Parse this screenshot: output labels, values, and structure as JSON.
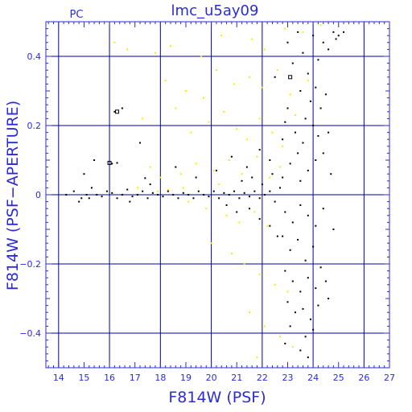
{
  "chart_data": {
    "type": "scatter",
    "title": "lmc_u5ay09",
    "subtitle": "PC",
    "xlabel": "F814W (PSF)",
    "ylabel": "F814W (PSF−APERTURE)",
    "xlim": [
      13.5,
      27
    ],
    "ylim": [
      -0.5,
      0.5
    ],
    "xticks": [
      14,
      15,
      16,
      17,
      18,
      19,
      20,
      21,
      22,
      23,
      24,
      25,
      26,
      27
    ],
    "yticks": [
      -0.4,
      -0.2,
      0,
      0.2,
      0.4
    ],
    "ytick_labels": [
      "−0.4",
      "−0.2",
      "0",
      "0.2",
      "0.4"
    ],
    "grid": true,
    "colors": {
      "axis": "#2b2bd9",
      "grid": "#0000a0",
      "series_yellow": "#f0f000",
      "series_black": "#000000"
    },
    "series": [
      {
        "color": "yellow",
        "points": [
          [
            16.2,
            0.44
          ],
          [
            16.7,
            0.42
          ],
          [
            17.8,
            0.41
          ],
          [
            18.4,
            0.43
          ],
          [
            19.6,
            0.4
          ],
          [
            20.4,
            0.46
          ],
          [
            21.6,
            0.45
          ],
          [
            22.1,
            0.42
          ],
          [
            22.9,
            0.48
          ],
          [
            23.6,
            0.47
          ],
          [
            24.3,
            0.49
          ],
          [
            18.2,
            0.33
          ],
          [
            19.0,
            0.3
          ],
          [
            19.7,
            0.28
          ],
          [
            20.2,
            0.36
          ],
          [
            20.9,
            0.32
          ],
          [
            21.5,
            0.34
          ],
          [
            22.0,
            0.31
          ],
          [
            22.6,
            0.36
          ],
          [
            23.1,
            0.29
          ],
          [
            23.8,
            0.33
          ],
          [
            17.3,
            0.22
          ],
          [
            18.6,
            0.25
          ],
          [
            19.2,
            0.18
          ],
          [
            19.9,
            0.21
          ],
          [
            20.5,
            0.24
          ],
          [
            21.0,
            0.19
          ],
          [
            21.4,
            0.16
          ],
          [
            21.9,
            0.22
          ],
          [
            22.4,
            0.18
          ],
          [
            22.8,
            0.14
          ],
          [
            23.3,
            0.23
          ],
          [
            17.6,
            0.08
          ],
          [
            18.0,
            0.05
          ],
          [
            18.8,
            0.06
          ],
          [
            19.4,
            0.09
          ],
          [
            20.1,
            0.07
          ],
          [
            20.7,
            0.1
          ],
          [
            21.2,
            0.06
          ],
          [
            21.8,
            0.11
          ],
          [
            22.3,
            0.05
          ],
          [
            22.7,
            0.08
          ],
          [
            17.1,
            0.02
          ],
          [
            17.9,
            0.01
          ],
          [
            18.3,
            0.015
          ],
          [
            18.9,
            0.02
          ],
          [
            19.5,
            0.01
          ],
          [
            20.3,
            0.03
          ],
          [
            19.1,
            -0.02
          ],
          [
            19.8,
            -0.04
          ],
          [
            20.6,
            -0.06
          ],
          [
            21.1,
            -0.08
          ],
          [
            21.7,
            -0.05
          ],
          [
            22.2,
            -0.09
          ],
          [
            20.0,
            -0.14
          ],
          [
            20.8,
            -0.17
          ],
          [
            21.3,
            -0.2
          ],
          [
            21.9,
            -0.23
          ],
          [
            22.5,
            -0.26
          ],
          [
            23.0,
            -0.28
          ],
          [
            21.5,
            -0.34
          ],
          [
            22.1,
            -0.38
          ],
          [
            22.7,
            -0.41
          ],
          [
            23.2,
            -0.44
          ],
          [
            21.8,
            -0.47
          ]
        ]
      },
      {
        "color": "black",
        "points": [
          [
            14.3,
            0.0
          ],
          [
            14.6,
            0.01
          ],
          [
            14.9,
            -0.01
          ],
          [
            15.1,
            0.0
          ],
          [
            15.3,
            0.02
          ],
          [
            15.5,
            0.0
          ],
          [
            15.7,
            -0.005
          ],
          [
            15.9,
            0.01
          ],
          [
            16.1,
            0.005
          ],
          [
            16.3,
            -0.01
          ],
          [
            16.5,
            0.0
          ],
          [
            16.7,
            0.015
          ],
          [
            16.9,
            -0.005
          ],
          [
            17.1,
            0.0
          ],
          [
            17.3,
            0.01
          ],
          [
            17.5,
            -0.01
          ],
          [
            17.7,
            0.005
          ],
          [
            17.9,
            0.0
          ],
          [
            18.1,
            -0.005
          ],
          [
            18.3,
            0.01
          ],
          [
            18.5,
            0.0
          ],
          [
            18.7,
            -0.01
          ],
          [
            18.9,
            0.005
          ],
          [
            19.1,
            0.0
          ],
          [
            19.3,
            -0.01
          ],
          [
            19.5,
            0.01
          ],
          [
            19.7,
            0.0
          ],
          [
            19.9,
            -0.005
          ],
          [
            20.1,
            0.01
          ],
          [
            20.3,
            -0.01
          ],
          [
            20.5,
            0.005
          ],
          [
            20.7,
            0.0
          ],
          [
            20.9,
            0.01
          ],
          [
            21.1,
            -0.01
          ],
          [
            21.3,
            0.005
          ],
          [
            21.5,
            -0.005
          ],
          [
            21.7,
            0.01
          ],
          [
            21.9,
            -0.01
          ],
          [
            22.1,
            0.0
          ],
          [
            22.3,
            0.01
          ],
          [
            22.5,
            -0.02
          ],
          [
            22.7,
            0.02
          ],
          [
            15.0,
            0.06
          ],
          [
            15.4,
            0.1
          ],
          [
            16.2,
            0.24
          ],
          [
            16.5,
            0.25
          ],
          [
            17.2,
            0.15
          ],
          [
            16.1,
            0.09
          ],
          [
            18.6,
            0.08
          ],
          [
            19.4,
            0.05
          ],
          [
            20.2,
            0.07
          ],
          [
            20.8,
            0.11
          ],
          [
            21.4,
            0.08
          ],
          [
            21.9,
            0.13
          ],
          [
            22.3,
            0.1
          ],
          [
            22.8,
            0.16
          ],
          [
            21.2,
            0.04
          ],
          [
            21.6,
            0.05
          ],
          [
            22.0,
            0.03
          ],
          [
            22.4,
            0.06
          ],
          [
            20.6,
            -0.03
          ],
          [
            21.0,
            -0.05
          ],
          [
            21.5,
            -0.04
          ],
          [
            21.9,
            -0.07
          ],
          [
            22.3,
            -0.09
          ],
          [
            22.6,
            -0.12
          ],
          [
            23.0,
            0.44
          ],
          [
            23.2,
            0.38
          ],
          [
            23.4,
            0.47
          ],
          [
            23.6,
            0.41
          ],
          [
            23.8,
            0.35
          ],
          [
            24.0,
            0.46
          ],
          [
            24.2,
            0.39
          ],
          [
            24.4,
            0.44
          ],
          [
            24.6,
            0.42
          ],
          [
            24.8,
            0.47
          ],
          [
            25.0,
            0.46
          ],
          [
            23.5,
            0.3
          ],
          [
            23.9,
            0.27
          ],
          [
            24.1,
            0.31
          ],
          [
            24.3,
            0.25
          ],
          [
            24.5,
            0.29
          ],
          [
            24.0,
            0.2
          ],
          [
            23.7,
            0.22
          ],
          [
            23.3,
            0.18
          ],
          [
            22.9,
            0.21
          ],
          [
            23.6,
            0.15
          ],
          [
            24.2,
            0.17
          ],
          [
            24.4,
            0.12
          ],
          [
            24.6,
            0.18
          ],
          [
            23.1,
            0.09
          ],
          [
            23.4,
            0.12
          ],
          [
            23.8,
            0.07
          ],
          [
            24.1,
            0.1
          ],
          [
            22.8,
            0.05
          ],
          [
            23.5,
            0.04
          ],
          [
            22.9,
            -0.05
          ],
          [
            23.2,
            -0.08
          ],
          [
            23.5,
            -0.03
          ],
          [
            23.8,
            -0.06
          ],
          [
            24.1,
            -0.09
          ],
          [
            24.4,
            -0.04
          ],
          [
            22.8,
            -0.12
          ],
          [
            23.1,
            -0.16
          ],
          [
            23.4,
            -0.13
          ],
          [
            23.7,
            -0.19
          ],
          [
            24.0,
            -0.15
          ],
          [
            24.3,
            -0.21
          ],
          [
            22.9,
            -0.22
          ],
          [
            23.2,
            -0.25
          ],
          [
            23.5,
            -0.28
          ],
          [
            23.8,
            -0.24
          ],
          [
            24.1,
            -0.27
          ],
          [
            24.5,
            -0.25
          ],
          [
            23.0,
            -0.31
          ],
          [
            23.3,
            -0.34
          ],
          [
            23.6,
            -0.33
          ],
          [
            23.9,
            -0.36
          ],
          [
            24.2,
            -0.32
          ],
          [
            24.6,
            -0.3
          ],
          [
            23.1,
            -0.38
          ],
          [
            23.7,
            -0.41
          ],
          [
            24.0,
            -0.39
          ],
          [
            23.5,
            -0.45
          ],
          [
            23.8,
            -0.47
          ],
          [
            22.9,
            -0.43
          ],
          [
            16.3,
            0.092
          ],
          [
            17.4,
            0.048
          ],
          [
            14.8,
            -0.02
          ],
          [
            15.2,
            -0.01
          ],
          [
            16.8,
            -0.02
          ],
          [
            17.6,
            0.03
          ],
          [
            22.5,
            0.34
          ],
          [
            23.0,
            0.25
          ],
          [
            24.7,
            0.06
          ],
          [
            24.8,
            -0.1
          ],
          [
            24.9,
            0.45
          ],
          [
            25.2,
            0.47
          ]
        ]
      }
    ]
  }
}
